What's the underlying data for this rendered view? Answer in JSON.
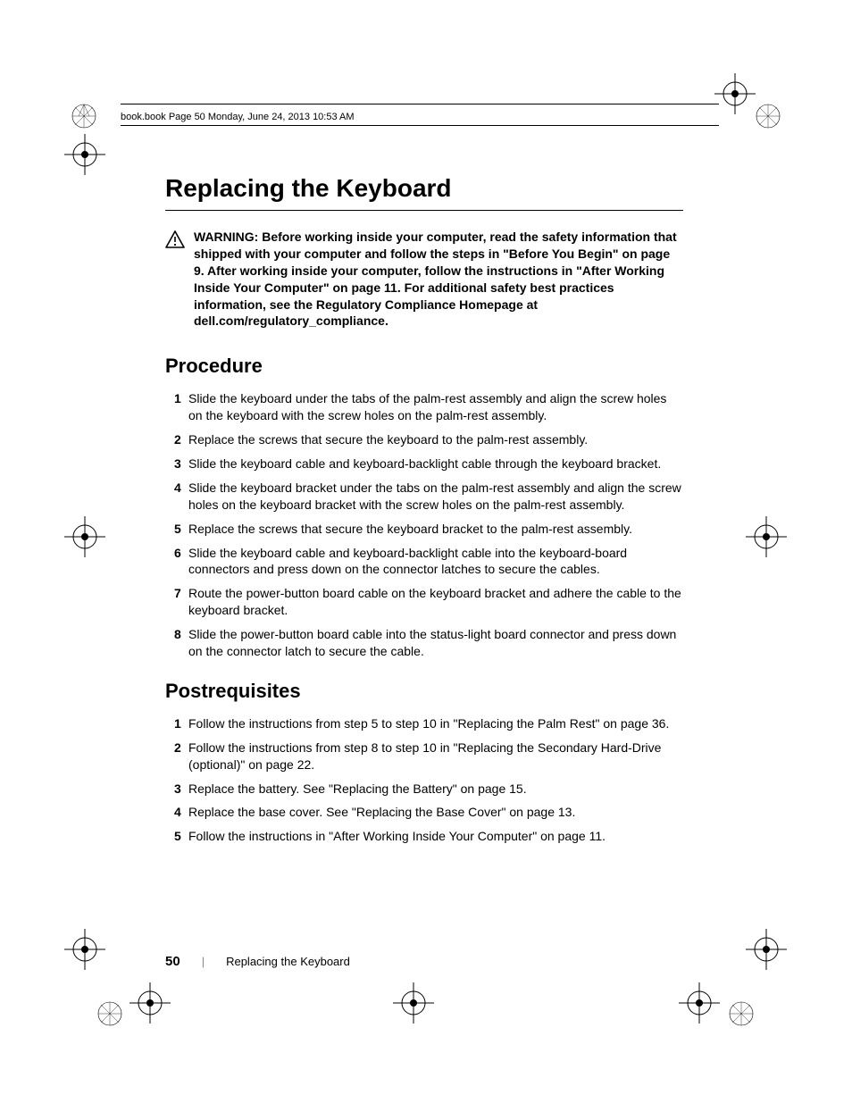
{
  "meta": {
    "headerLine": "book.book  Page 50  Monday, June 24, 2013  10:53 AM"
  },
  "title": "Replacing the Keyboard",
  "warning": {
    "label": "WARNING:",
    "text": "Before working inside your computer, read the safety information that shipped with your computer and follow the steps in \"Before You Begin\" on page 9. After working inside your computer, follow the instructions in \"After Working Inside Your Computer\" on page 11. For additional safety best practices information, see the Regulatory Compliance Homepage at dell.com/regulatory_compliance."
  },
  "sections": {
    "procedure": {
      "heading": "Procedure",
      "items": [
        "Slide the keyboard under the tabs of the palm-rest assembly and align the screw holes on the keyboard with the screw holes on the palm-rest assembly.",
        "Replace the screws that secure the keyboard to the palm-rest assembly.",
        "Slide the keyboard cable and keyboard-backlight cable through the keyboard bracket.",
        "Slide the keyboard bracket under the tabs on the palm-rest assembly and align the screw holes on the keyboard bracket with the screw holes on the palm-rest assembly.",
        "Replace the screws that secure the keyboard bracket to the palm-rest assembly.",
        "Slide the keyboard cable and keyboard-backlight cable into the keyboard-board connectors and press down on the connector latches to secure the cables.",
        "Route the power-button board cable on the keyboard bracket and adhere the cable to the keyboard bracket.",
        "Slide the power-button board cable into the status-light board connector and press down on the connector latch to secure the cable."
      ]
    },
    "postrequisites": {
      "heading": "Postrequisites",
      "items": [
        "Follow the instructions from step 5 to step 10 in \"Replacing the Palm Rest\" on page 36.",
        "Follow the instructions from step 8 to step 10 in \"Replacing the Secondary Hard-Drive (optional)\" on page 22.",
        "Replace the battery. See \"Replacing the Battery\" on page 15.",
        "Replace the base cover. See \"Replacing the Base Cover\" on page 13.",
        "Follow the instructions in \"After Working Inside Your Computer\" on page 11."
      ]
    }
  },
  "footer": {
    "pageNumber": "50",
    "separator": "|",
    "chapter": "Replacing the Keyboard"
  },
  "colors": {
    "text": "#000000",
    "background": "#ffffff",
    "rule": "#000000"
  }
}
